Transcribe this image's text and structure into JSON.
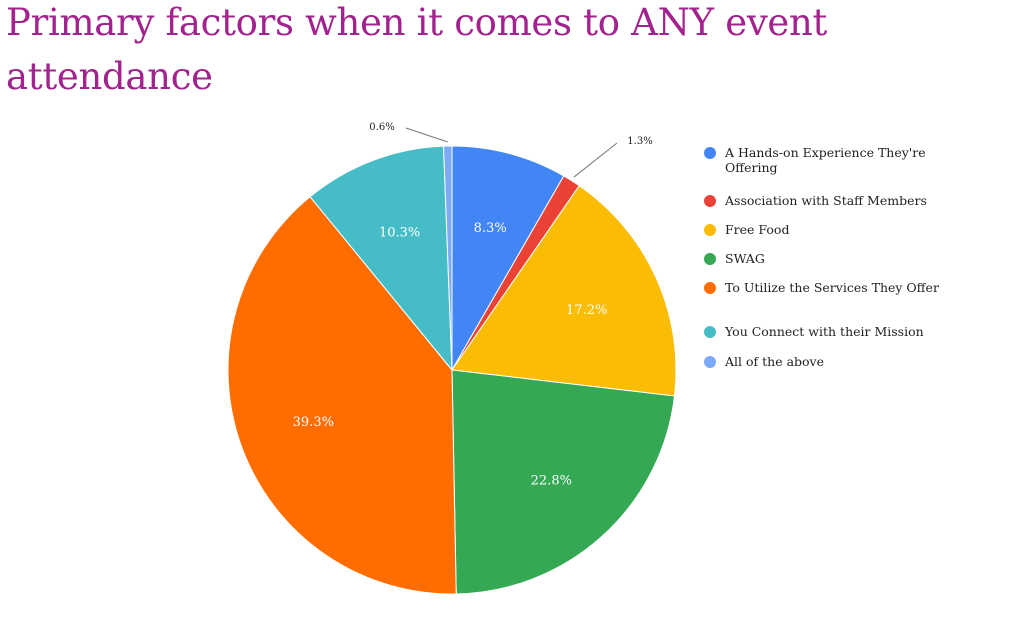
{
  "title": "Primary factors when it comes to ANY event attendance",
  "colors": {
    "title": "#a3238e",
    "label_inside": "#ffffff",
    "label_outside": "#222222"
  },
  "chart_data": {
    "type": "pie",
    "title": "Primary factors when it comes to ANY event attendance",
    "legend_position": "right",
    "start_angle_deg": 0,
    "direction": "clockwise",
    "slices": [
      {
        "label": "A Hands-on Experience They're Offering",
        "value": 8.3,
        "display": "8.3%",
        "color": "#4285f4",
        "label_position": "inside"
      },
      {
        "label": "Association with Staff Members",
        "value": 1.3,
        "display": "1.3%",
        "color": "#ea4335",
        "label_position": "outside"
      },
      {
        "label": "Free Food",
        "value": 17.2,
        "display": "17.2%",
        "color": "#fbbc04",
        "label_position": "inside"
      },
      {
        "label": "SWAG",
        "value": 22.8,
        "display": "22.8%",
        "color": "#34a853",
        "label_position": "inside"
      },
      {
        "label": "To Utilize the Services They Offer",
        "value": 39.3,
        "display": "39.3%",
        "color": "#ff6d01",
        "label_position": "inside"
      },
      {
        "label": "You Connect with their Mission",
        "value": 10.3,
        "display": "10.3%",
        "color": "#46bdc6",
        "label_position": "inside"
      },
      {
        "label": "All of the above",
        "value": 0.6,
        "display": "0.6%",
        "color": "#7baaf7",
        "label_position": "outside"
      }
    ]
  }
}
